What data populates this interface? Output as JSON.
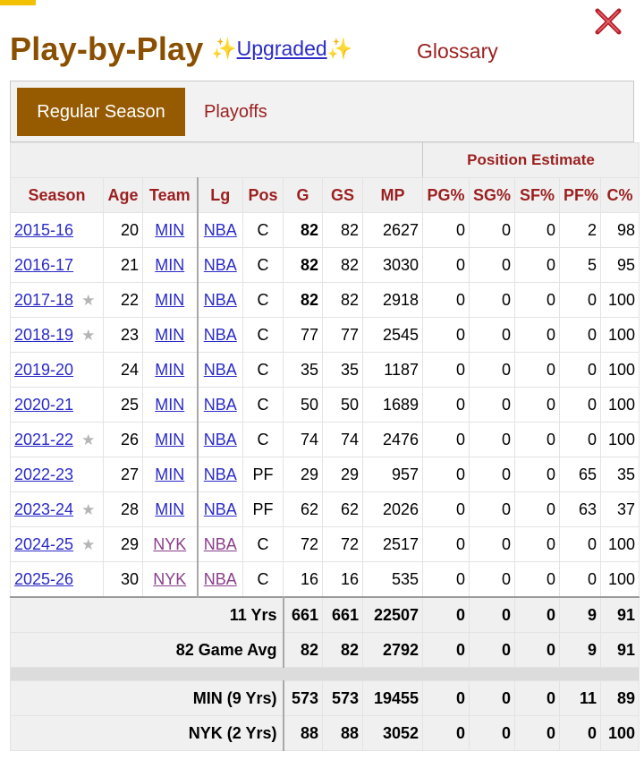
{
  "header": {
    "title": "Play-by-Play",
    "sparkle_left": "✨",
    "upgraded_label": "Upgraded",
    "sparkle_right": "✨",
    "glossary_label": "Glossary"
  },
  "tabs": {
    "regular_season": "Regular Season",
    "playoffs": "Playoffs"
  },
  "table": {
    "group_header": "Position Estimate",
    "columns": [
      "Season",
      "Age",
      "Team",
      "Lg",
      "Pos",
      "G",
      "GS",
      "MP",
      "PG%",
      "SG%",
      "SF%",
      "PF%",
      "C%"
    ],
    "rows": [
      {
        "season": "2015-16",
        "star": "",
        "age": "20",
        "team": "MIN",
        "lg": "NBA",
        "pos": "C",
        "g": "82",
        "g_bold": true,
        "gs": "82",
        "mp": "2627",
        "pg": "0",
        "sg": "0",
        "sf": "0",
        "pf": "2",
        "c": "98"
      },
      {
        "season": "2016-17",
        "star": "",
        "age": "21",
        "team": "MIN",
        "lg": "NBA",
        "pos": "C",
        "g": "82",
        "g_bold": true,
        "gs": "82",
        "mp": "3030",
        "pg": "0",
        "sg": "0",
        "sf": "0",
        "pf": "5",
        "c": "95"
      },
      {
        "season": "2017-18",
        "star": "★",
        "age": "22",
        "team": "MIN",
        "lg": "NBA",
        "pos": "C",
        "g": "82",
        "g_bold": true,
        "gs": "82",
        "mp": "2918",
        "pg": "0",
        "sg": "0",
        "sf": "0",
        "pf": "0",
        "c": "100"
      },
      {
        "season": "2018-19",
        "star": "★",
        "age": "23",
        "team": "MIN",
        "lg": "NBA",
        "pos": "C",
        "g": "77",
        "g_bold": false,
        "gs": "77",
        "mp": "2545",
        "pg": "0",
        "sg": "0",
        "sf": "0",
        "pf": "0",
        "c": "100"
      },
      {
        "season": "2019-20",
        "star": "",
        "age": "24",
        "team": "MIN",
        "lg": "NBA",
        "pos": "C",
        "g": "35",
        "g_bold": false,
        "gs": "35",
        "mp": "1187",
        "pg": "0",
        "sg": "0",
        "sf": "0",
        "pf": "0",
        "c": "100"
      },
      {
        "season": "2020-21",
        "star": "",
        "age": "25",
        "team": "MIN",
        "lg": "NBA",
        "pos": "C",
        "g": "50",
        "g_bold": false,
        "gs": "50",
        "mp": "1689",
        "pg": "0",
        "sg": "0",
        "sf": "0",
        "pf": "0",
        "c": "100"
      },
      {
        "season": "2021-22",
        "star": "★",
        "age": "26",
        "team": "MIN",
        "lg": "NBA",
        "pos": "C",
        "g": "74",
        "g_bold": false,
        "gs": "74",
        "mp": "2476",
        "pg": "0",
        "sg": "0",
        "sf": "0",
        "pf": "0",
        "c": "100"
      },
      {
        "season": "2022-23",
        "star": "",
        "age": "27",
        "team": "MIN",
        "lg": "NBA",
        "pos": "PF",
        "g": "29",
        "g_bold": false,
        "gs": "29",
        "mp": "957",
        "pg": "0",
        "sg": "0",
        "sf": "0",
        "pf": "65",
        "c": "35"
      },
      {
        "season": "2023-24",
        "star": "★",
        "age": "28",
        "team": "MIN",
        "lg": "NBA",
        "pos": "PF",
        "g": "62",
        "g_bold": false,
        "gs": "62",
        "mp": "2026",
        "pg": "0",
        "sg": "0",
        "sf": "0",
        "pf": "63",
        "c": "37"
      },
      {
        "season": "2024-25",
        "star": "★",
        "age": "29",
        "team": "NYK",
        "lg": "NBA",
        "pos": "C",
        "g": "72",
        "g_bold": false,
        "gs": "72",
        "mp": "2517",
        "pg": "0",
        "sg": "0",
        "sf": "0",
        "pf": "0",
        "c": "100"
      },
      {
        "season": "2025-26",
        "star": "",
        "age": "30",
        "team": "NYK",
        "lg": "NBA",
        "pos": "C",
        "g": "16",
        "g_bold": false,
        "gs": "16",
        "mp": "535",
        "pg": "0",
        "sg": "0",
        "sf": "0",
        "pf": "0",
        "c": "100"
      }
    ],
    "career": [
      {
        "label": "11 Yrs",
        "g": "661",
        "gs": "661",
        "mp": "22507",
        "pg": "0",
        "sg": "0",
        "sf": "0",
        "pf": "9",
        "c": "91"
      },
      {
        "label": "82 Game Avg",
        "g": "82",
        "gs": "82",
        "mp": "2792",
        "pg": "0",
        "sg": "0",
        "sf": "0",
        "pf": "9",
        "c": "91"
      }
    ],
    "team_totals": [
      {
        "label": "MIN (9 Yrs)",
        "g": "573",
        "gs": "573",
        "mp": "19455",
        "pg": "0",
        "sg": "0",
        "sf": "0",
        "pf": "11",
        "c": "89"
      },
      {
        "label": "NYK (2 Yrs)",
        "g": "88",
        "gs": "88",
        "mp": "3052",
        "pg": "0",
        "sg": "0",
        "sf": "0",
        "pf": "0",
        "c": "100"
      }
    ]
  },
  "colors": {
    "title": "#8a4f00",
    "accent_red": "#9b1f1f",
    "active_tab": "#965a00",
    "link": "#2a2ac8",
    "visited_link": "#8a3d8a"
  }
}
